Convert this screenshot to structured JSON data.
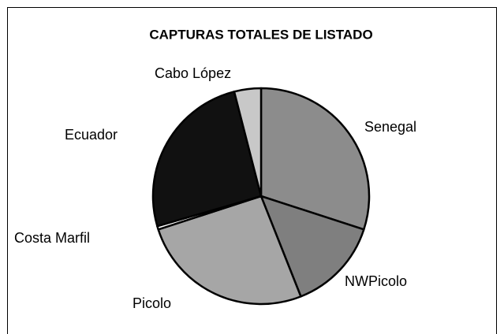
{
  "chart_data": {
    "type": "pie",
    "title": "CAPTURAS TOTALES DE LISTADO",
    "categories": [
      "Senegal",
      "NWPicolo",
      "Picolo",
      "Costa Marfil",
      "Ecuador",
      "Cabo López"
    ],
    "values": [
      30,
      14,
      26,
      0.5,
      25.5,
      4
    ],
    "colors": [
      "#8c8c8c",
      "#7f7f7f",
      "#a6a6a6",
      "#ffffff",
      "#111111",
      "#c8c8c8"
    ]
  }
}
